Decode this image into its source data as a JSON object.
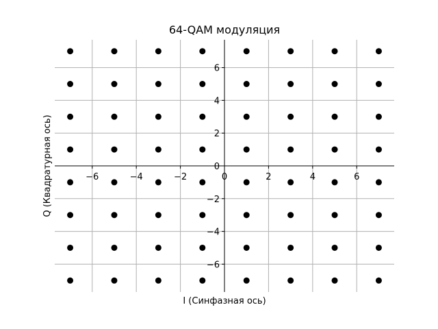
{
  "chart_data": {
    "type": "scatter",
    "title": "64-QAM модуляция",
    "xlabel": "I (Синфазная ось)",
    "ylabel": "Q (Квадратурная ось)",
    "xlim": [
      -7.7,
      7.7
    ],
    "ylim": [
      -7.7,
      7.7
    ],
    "grid": true,
    "axes_through_origin": true,
    "xticks": [
      -6,
      -4,
      -2,
      0,
      2,
      4,
      6
    ],
    "yticks": [
      -6,
      -4,
      -2,
      0,
      2,
      4,
      6
    ],
    "xtick_labels": [
      "−6",
      "−4",
      "−2",
      "0",
      "2",
      "4",
      "6"
    ],
    "ytick_labels": [
      "−6",
      "−4",
      "−2",
      "0",
      "2",
      "4",
      "6"
    ],
    "grid_x": [
      -6,
      -4,
      -2,
      0,
      2,
      4,
      6
    ],
    "grid_y": [
      -6,
      -4,
      -2,
      0,
      2,
      4,
      6
    ],
    "marker_color": "#000000",
    "grid_color": "#b0b0b0",
    "series": [
      {
        "points": [
          [
            -7,
            -7
          ],
          [
            -7,
            -5
          ],
          [
            -7,
            -3
          ],
          [
            -7,
            -1
          ],
          [
            -7,
            1
          ],
          [
            -7,
            3
          ],
          [
            -7,
            5
          ],
          [
            -7,
            7
          ],
          [
            -5,
            -7
          ],
          [
            -5,
            -5
          ],
          [
            -5,
            -3
          ],
          [
            -5,
            -1
          ],
          [
            -5,
            1
          ],
          [
            -5,
            3
          ],
          [
            -5,
            5
          ],
          [
            -5,
            7
          ],
          [
            -3,
            -7
          ],
          [
            -3,
            -5
          ],
          [
            -3,
            -3
          ],
          [
            -3,
            -1
          ],
          [
            -3,
            1
          ],
          [
            -3,
            3
          ],
          [
            -3,
            5
          ],
          [
            -3,
            7
          ],
          [
            -1,
            -7
          ],
          [
            -1,
            -5
          ],
          [
            -1,
            -3
          ],
          [
            -1,
            -1
          ],
          [
            -1,
            1
          ],
          [
            -1,
            3
          ],
          [
            -1,
            5
          ],
          [
            -1,
            7
          ],
          [
            1,
            -7
          ],
          [
            1,
            -5
          ],
          [
            1,
            -3
          ],
          [
            1,
            -1
          ],
          [
            1,
            1
          ],
          [
            1,
            3
          ],
          [
            1,
            5
          ],
          [
            1,
            7
          ],
          [
            3,
            -7
          ],
          [
            3,
            -5
          ],
          [
            3,
            -3
          ],
          [
            3,
            -1
          ],
          [
            3,
            1
          ],
          [
            3,
            3
          ],
          [
            3,
            5
          ],
          [
            3,
            7
          ],
          [
            5,
            -7
          ],
          [
            5,
            -5
          ],
          [
            5,
            -3
          ],
          [
            5,
            -1
          ],
          [
            5,
            1
          ],
          [
            5,
            3
          ],
          [
            5,
            5
          ],
          [
            5,
            7
          ],
          [
            7,
            -7
          ],
          [
            7,
            -5
          ],
          [
            7,
            -3
          ],
          [
            7,
            -1
          ],
          [
            7,
            1
          ],
          [
            7,
            3
          ],
          [
            7,
            5
          ],
          [
            7,
            7
          ]
        ]
      }
    ]
  }
}
